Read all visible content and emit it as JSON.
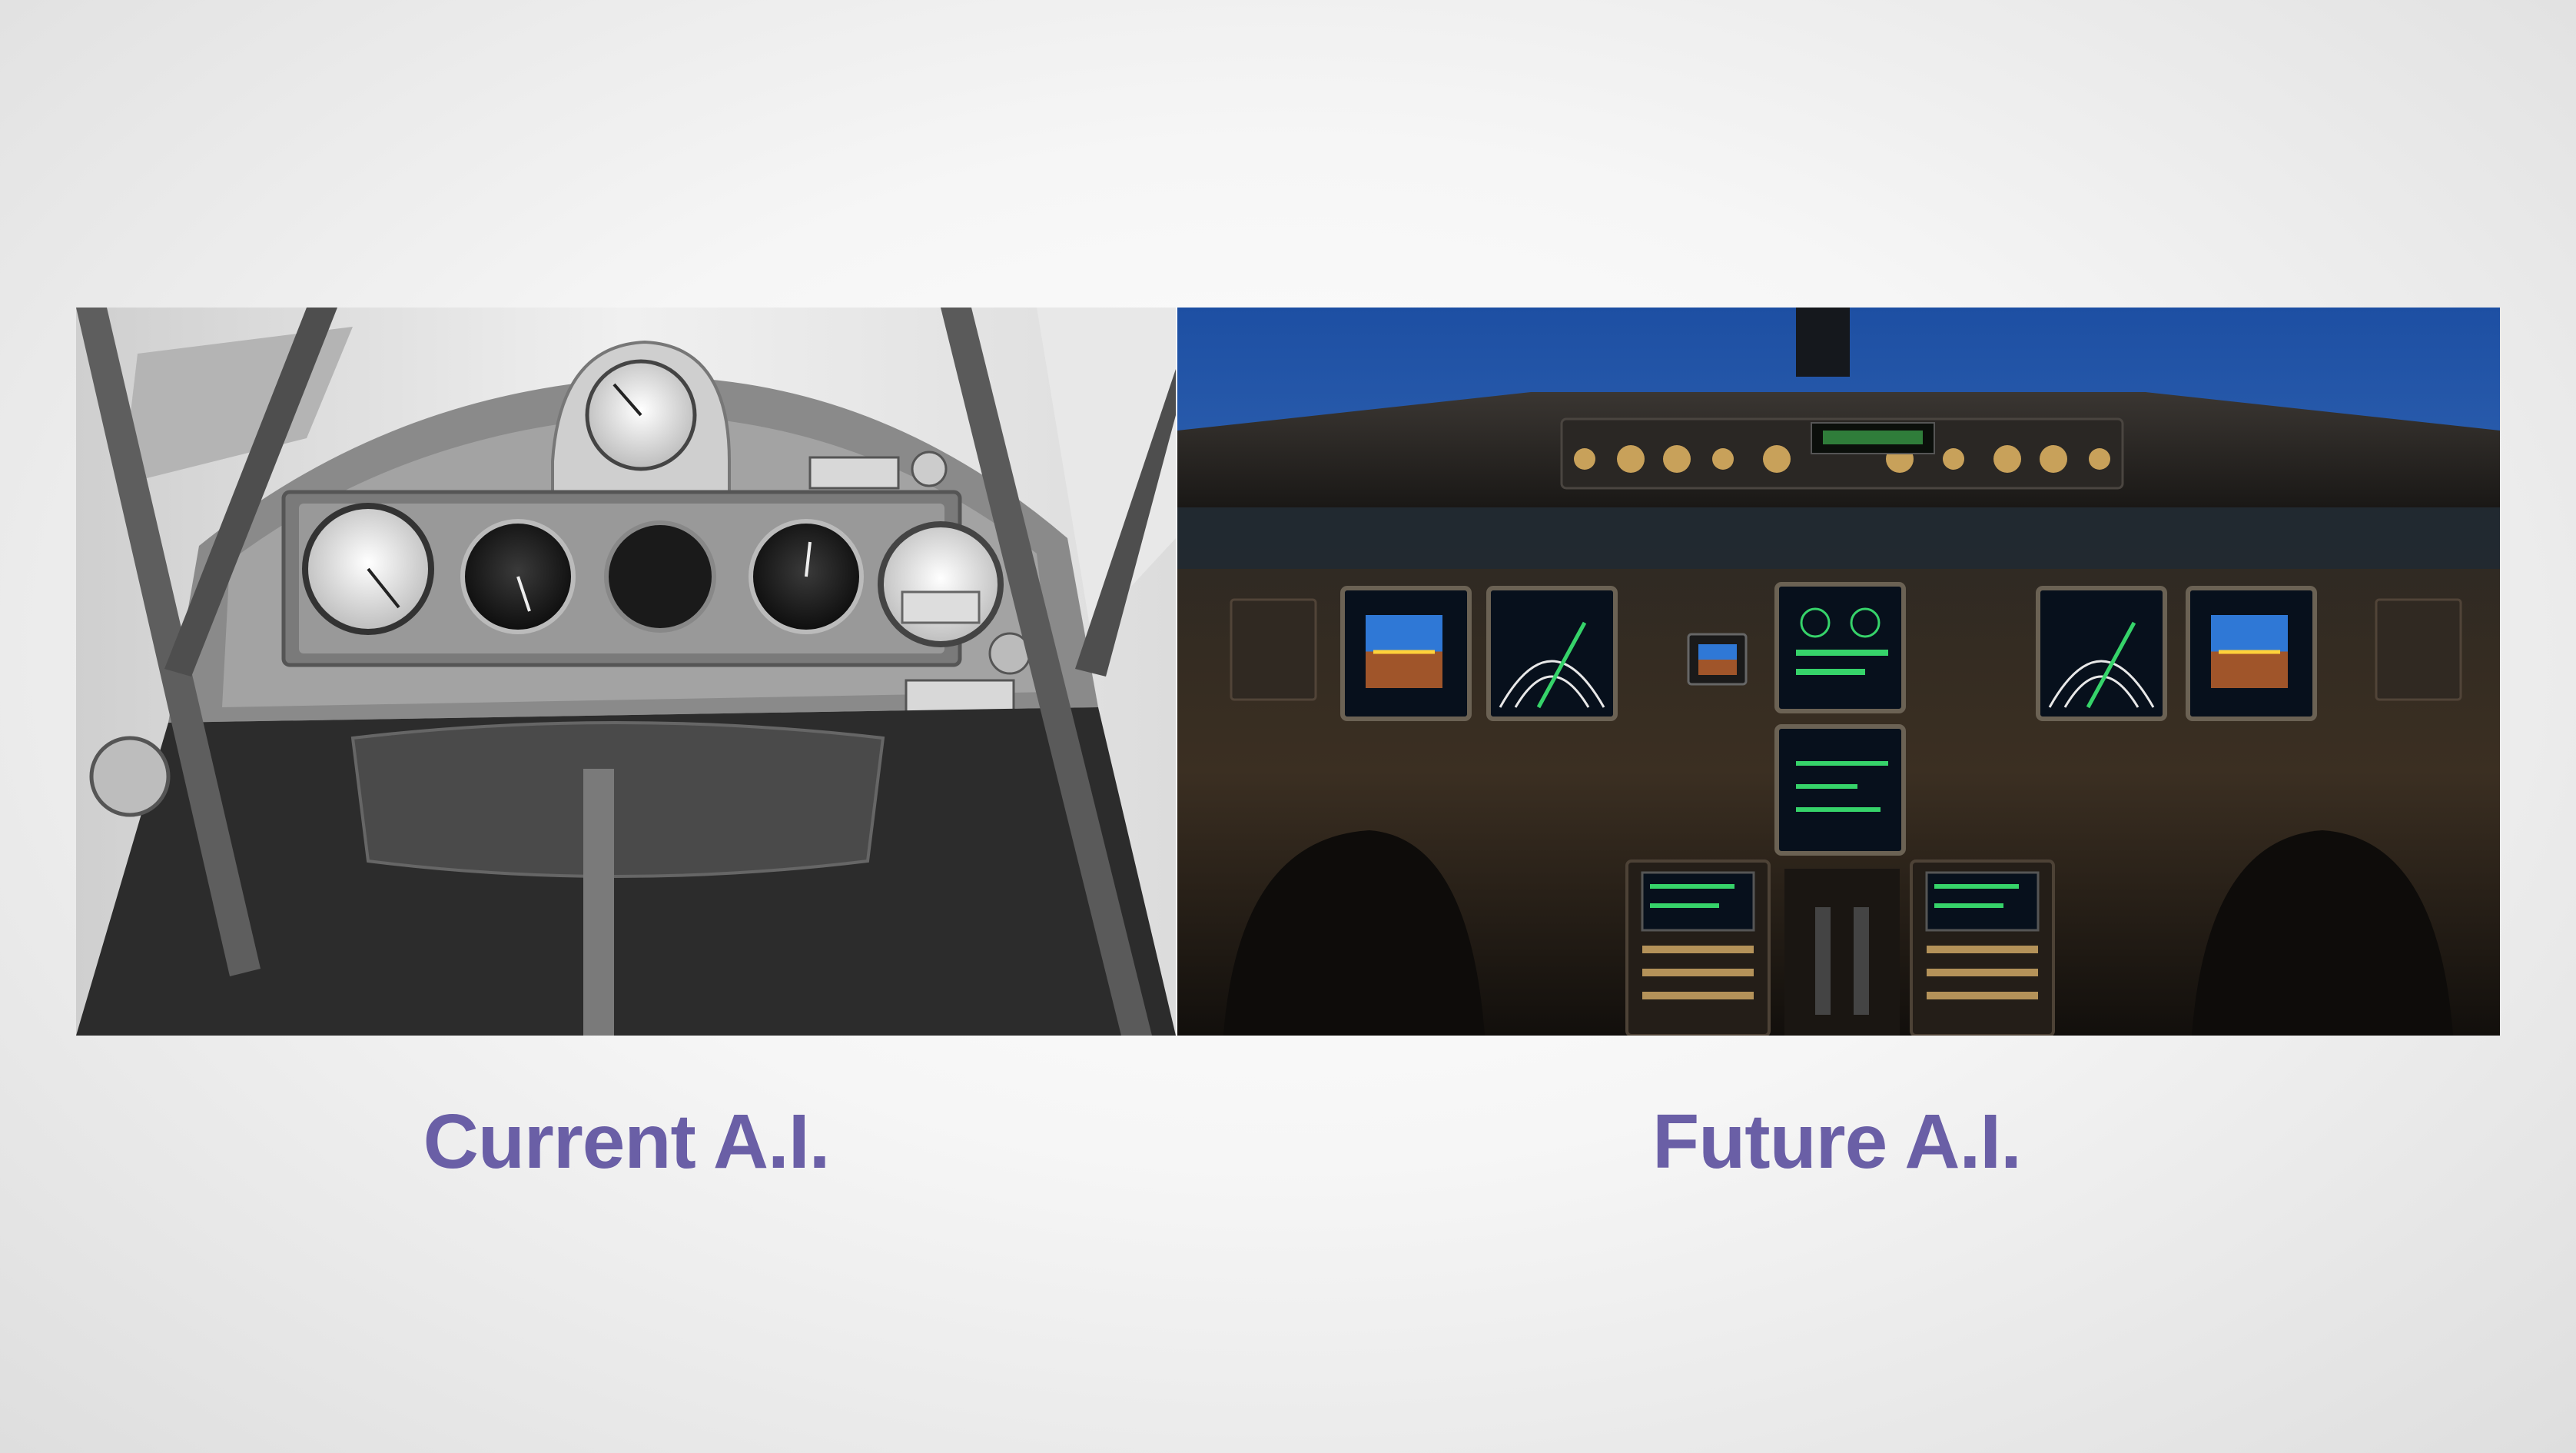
{
  "slide": {
    "background": "#f4f4f4",
    "accent_color": "#6a5fa6",
    "left": {
      "caption": "Current A.I.",
      "image": "vintage-cockpit-photo",
      "tone": "black-and-white"
    },
    "right": {
      "caption": "Future A.I.",
      "image": "modern-glass-cockpit-photo",
      "tone": "color"
    }
  }
}
